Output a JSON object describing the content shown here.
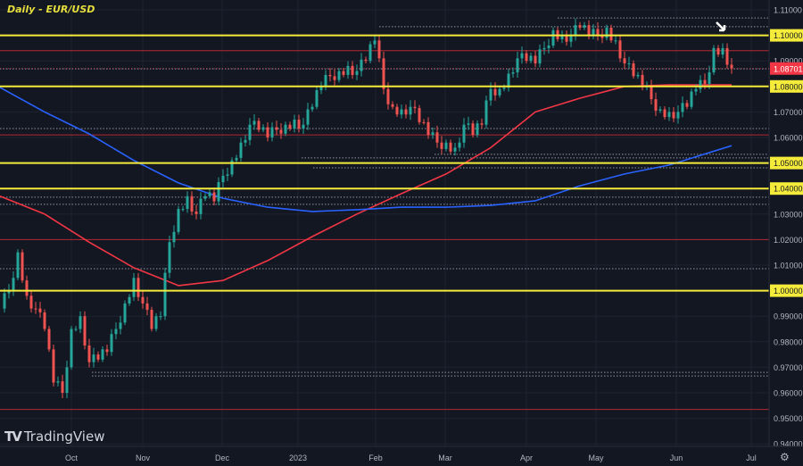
{
  "header": {
    "title": "Daily - EUR/USD"
  },
  "branding": {
    "logo_text": "TradingView",
    "logo_mark": "TV"
  },
  "settings_icon": "gear-icon",
  "colors": {
    "background": "#131722",
    "up": "#26a69a",
    "down": "#ef5350",
    "ma_short": "#f23645",
    "ma_long": "#2962ff",
    "key_level": "#f5eb3b",
    "minor_level": "#b22833",
    "dotted_level": "#b2b5be",
    "last_price": "#f23645"
  },
  "chart_data": {
    "type": "candlestick",
    "symbol": "EUR/USD",
    "timeframe": "Daily",
    "x_tick_labels": [
      "Oct",
      "Nov",
      "Dec",
      "2023",
      "Feb",
      "Mar",
      "Apr",
      "May",
      "Jun",
      "Jul"
    ],
    "y_tick_labels": [
      "1.11000",
      "1.10000",
      "1.09000",
      "1.08000",
      "1.07000",
      "1.06000",
      "1.05000",
      "1.04000",
      "1.03000",
      "1.02000",
      "1.01000",
      "1.00000",
      "0.99000",
      "0.98000",
      "0.97000",
      "0.96000",
      "0.95000",
      "0.94000"
    ],
    "ylim": [
      0.94,
      1.11
    ],
    "grid": true,
    "closes_sampled": [
      0.993,
      1.0,
      1.015,
      0.998,
      0.993,
      0.985,
      0.964,
      0.96,
      0.985,
      0.99,
      0.972,
      0.973,
      0.976,
      0.985,
      0.995,
      1.005,
      0.995,
      0.985,
      0.99,
      1.019,
      1.032,
      1.037,
      1.03,
      1.037,
      1.035,
      1.045,
      1.051,
      1.058,
      1.065,
      1.063,
      1.06,
      1.063,
      1.065,
      1.067,
      1.065,
      1.072,
      1.08,
      1.084,
      1.086,
      1.088,
      1.086,
      1.09,
      1.098,
      1.079,
      1.072,
      1.071,
      1.072,
      1.066,
      1.061,
      1.058,
      1.058,
      1.056,
      1.065,
      1.061,
      1.065,
      1.079,
      1.079,
      1.085,
      1.091,
      1.09,
      1.089,
      1.095,
      1.102,
      1.1,
      1.1,
      1.103,
      1.1,
      1.1,
      1.103,
      1.098,
      1.089,
      1.084,
      1.08,
      1.075,
      1.071,
      1.07,
      1.07,
      1.072,
      1.079,
      1.081,
      1.095,
      1.095,
      1.087
    ],
    "moving_averages": [
      {
        "color_key": "ma_short",
        "values": [
          1.037,
          1.03,
          1.019,
          1.009,
          1.002,
          1.004,
          1.0118,
          1.0212,
          1.03,
          1.038,
          1.0457,
          1.056,
          1.07,
          1.0754,
          1.08,
          1.0806,
          1.0806
        ]
      },
      {
        "color_key": "ma_long",
        "values": [
          1.0796,
          1.07,
          1.0614,
          1.051,
          1.0422,
          1.0362,
          1.0327,
          1.031,
          1.0317,
          1.0327,
          1.0327,
          1.0334,
          1.0352,
          1.0411,
          1.0457,
          1.0492,
          1.0568
        ]
      }
    ],
    "key_levels": [
      1.1,
      1.08,
      1.05,
      1.04,
      1.0
    ],
    "minor_levels": [
      1.094,
      1.061,
      1.02,
      0.9535
    ],
    "dotted_levels": [
      1.1068,
      1.1034,
      1.0869,
      1.0635,
      1.0534,
      1.052,
      1.0481,
      1.0366,
      1.0338,
      1.0086,
      0.968,
      0.9666
    ],
    "last_price": "1.08701",
    "annotation": "arrow pointing to recent high near 1.10000"
  }
}
